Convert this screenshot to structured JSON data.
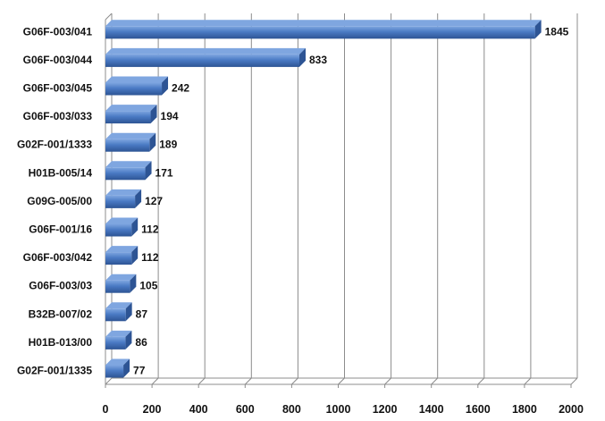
{
  "chart_data": {
    "type": "bar",
    "orientation": "horizontal",
    "style": "3d",
    "categories": [
      "G06F-003/041",
      "G06F-003/044",
      "G06F-003/045",
      "G06F-003/033",
      "G02F-001/1333",
      "H01B-005/14",
      "G09G-005/00",
      "G06F-001/16",
      "G06F-003/042",
      "G06F-003/03",
      "B32B-007/02",
      "H01B-013/00",
      "G02F-001/1335"
    ],
    "values": [
      1845,
      833,
      242,
      194,
      189,
      171,
      127,
      112,
      112,
      105,
      87,
      86,
      77
    ],
    "data_labels": [
      "1845",
      "833",
      "242",
      "194",
      "189",
      "171",
      "127",
      "112",
      "112",
      "105",
      "87",
      "86",
      "77"
    ],
    "xticks": [
      0,
      200,
      400,
      600,
      800,
      1000,
      1200,
      1400,
      1600,
      1800,
      2000
    ],
    "xtick_labels": [
      "0",
      "200",
      "400",
      "600",
      "800",
      "1000",
      "1200",
      "1400",
      "1600",
      "1800",
      "2000"
    ],
    "xlim": [
      0,
      2000
    ],
    "title": "",
    "xlabel": "",
    "ylabel": "",
    "grid": "vertical",
    "legend": "none",
    "colors": {
      "bar_front": "#4a7ac4",
      "bar_top": "#7fa6e0",
      "bar_side": "#2d5494",
      "grid": "#8c8c8c",
      "text": "#111111"
    }
  }
}
